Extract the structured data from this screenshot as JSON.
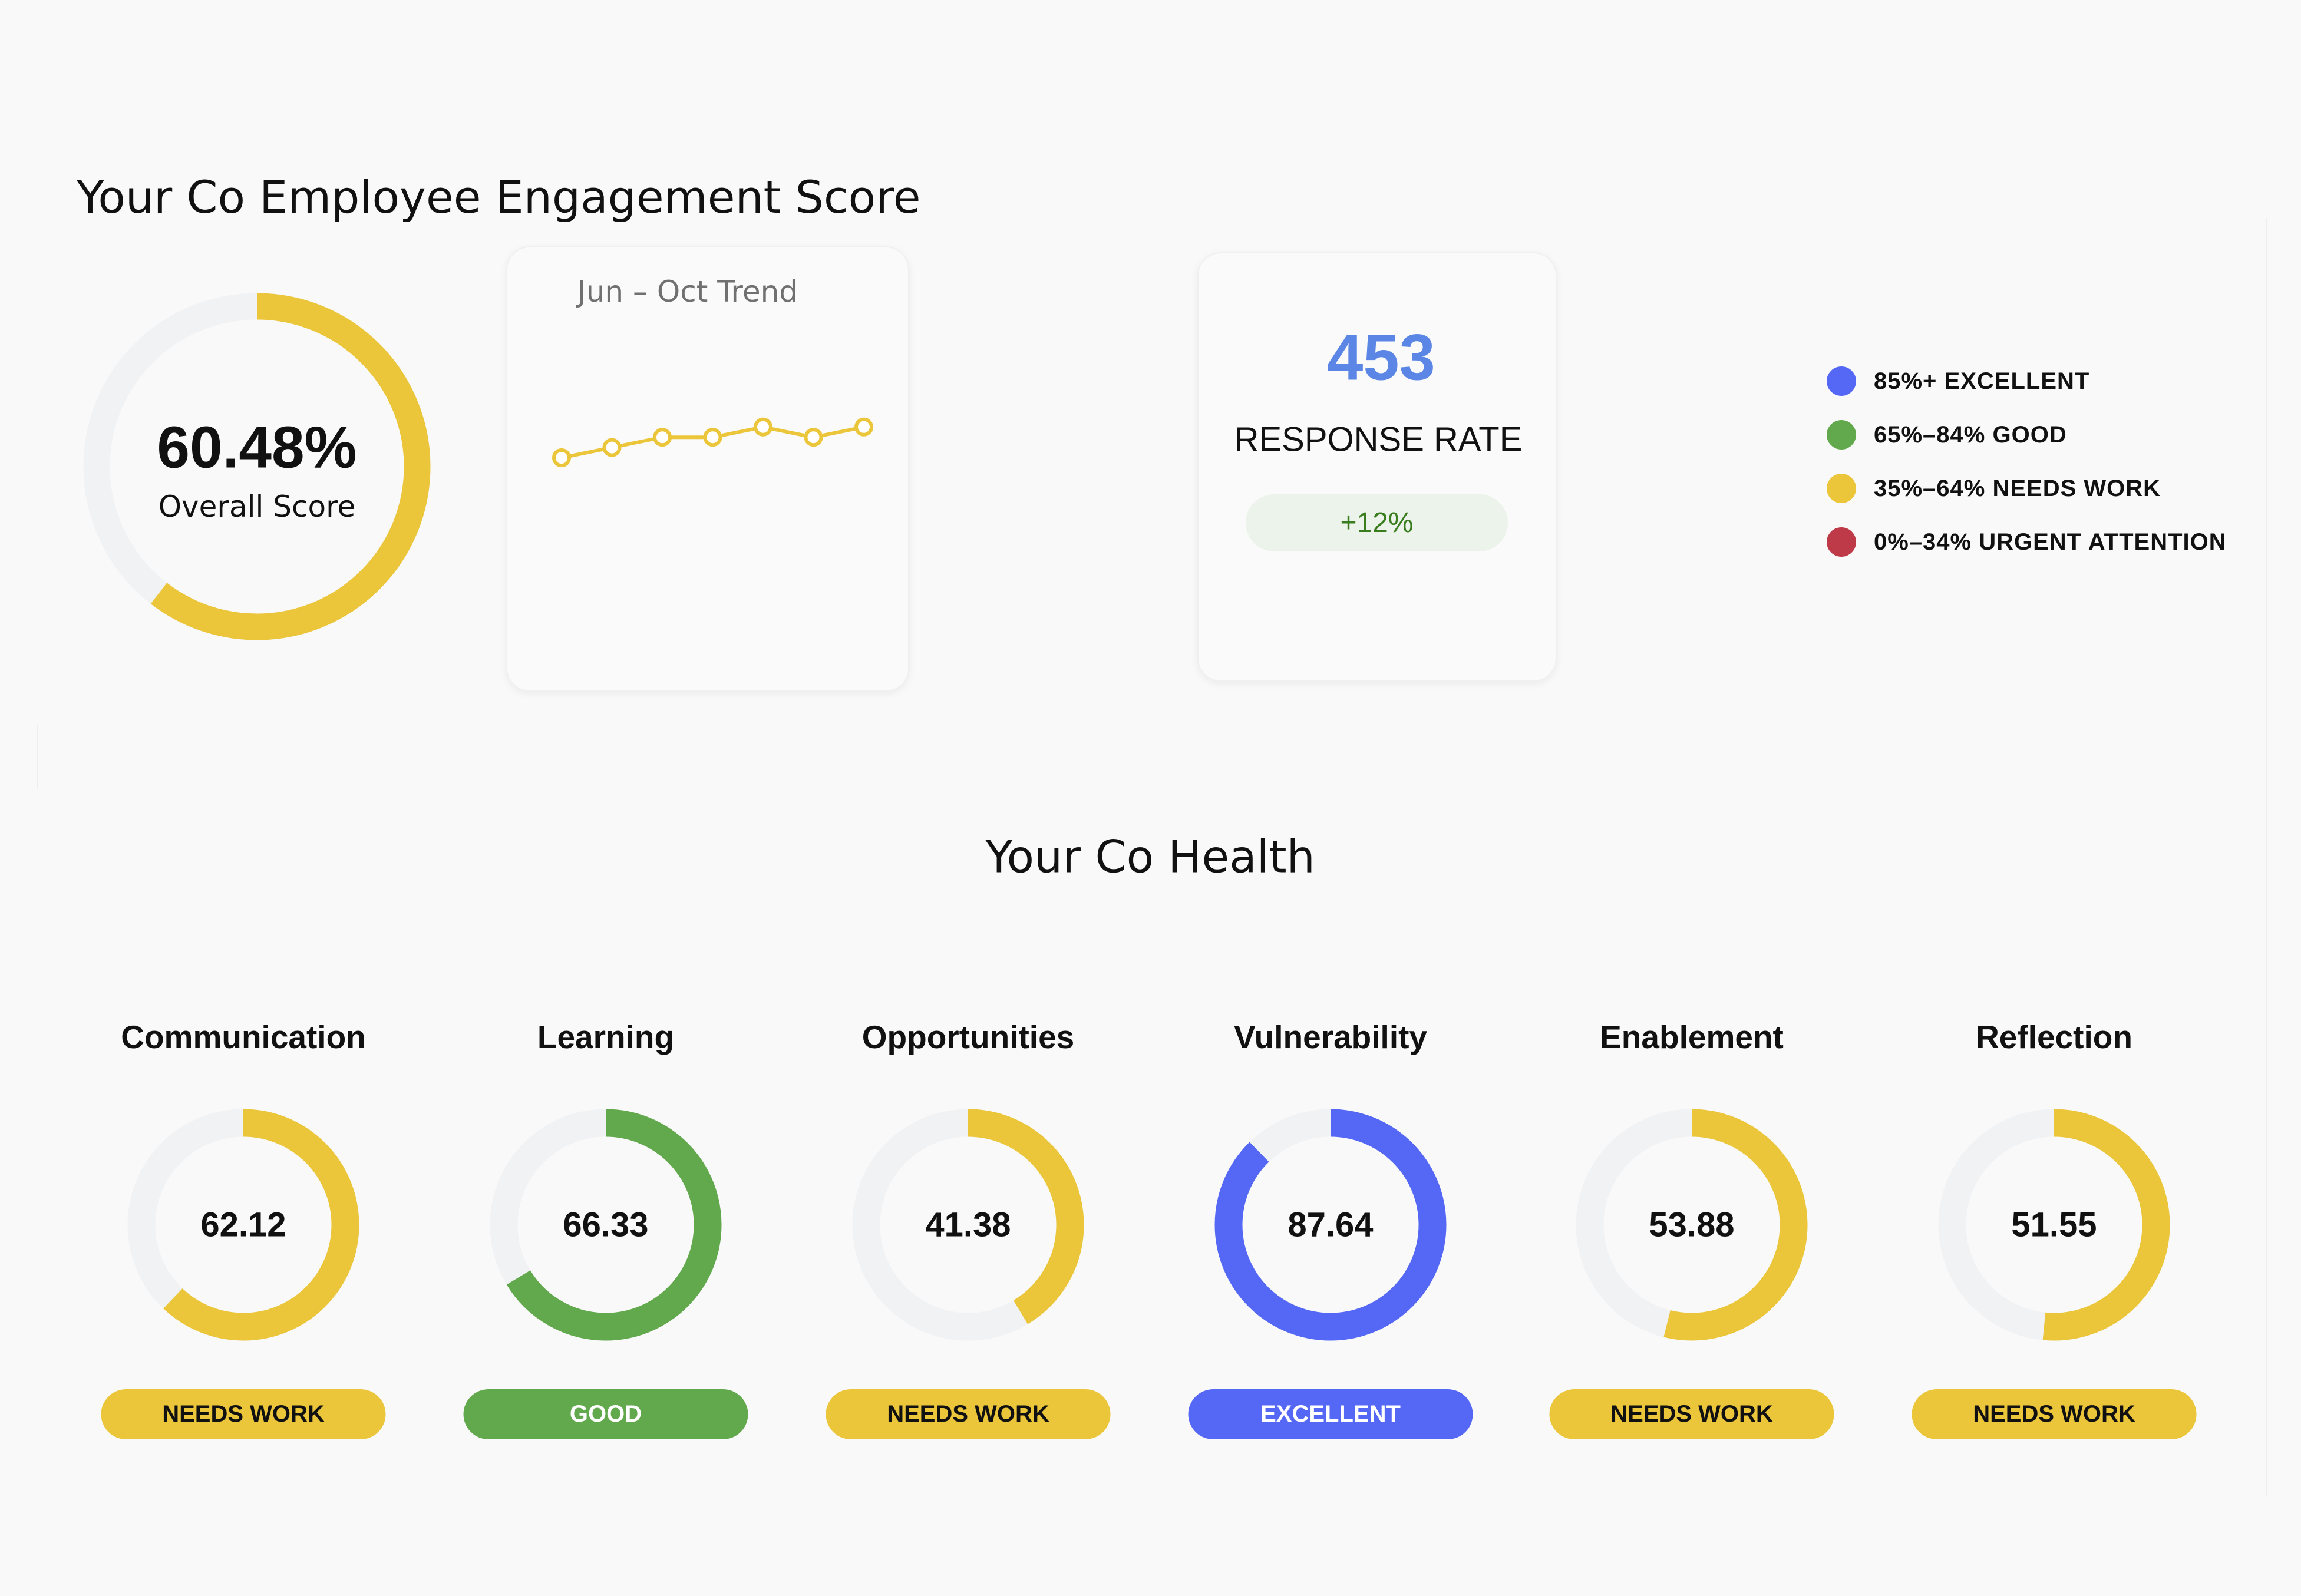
{
  "engagement": {
    "title": "Your Co Employee Engagement Score",
    "overall_score": 60.48,
    "overall_score_label": "60.48%",
    "overall_caption": "Overall Score",
    "overall_color": "#ebc63a"
  },
  "trend": {
    "title": "Jun – Oct Trend",
    "color": "#ebc63a"
  },
  "chart_data": {
    "type": "line",
    "title": "Jun – Oct Trend",
    "series": [
      {
        "values": [
          1,
          2,
          3,
          3,
          4,
          3,
          4
        ]
      }
    ],
    "grid": false,
    "note_axes": "no axes or tick labels shown; values are relative levels"
  },
  "response": {
    "count": "453",
    "label": "RESPONSE RATE",
    "change": "+12%"
  },
  "legend": [
    {
      "label": "85%+ EXCELLENT",
      "color": "#5468f5"
    },
    {
      "label": "65%–84% GOOD",
      "color": "#62a84c"
    },
    {
      "label": "35%–64% NEEDS WORK",
      "color": "#ebc63a"
    },
    {
      "label": "0%–34% URGENT ATTENTION",
      "color": "#bf3a48"
    }
  ],
  "health": {
    "title": "Your Co Health",
    "categories": [
      {
        "name": "Communication",
        "value": 62.12,
        "value_label": "62.12",
        "status": "NEEDS WORK",
        "color": "#ebc63a",
        "text_color": "#111111"
      },
      {
        "name": "Learning",
        "value": 66.33,
        "value_label": "66.33",
        "status": "GOOD",
        "color": "#62a84c",
        "text_color": "#ffffff"
      },
      {
        "name": "Opportunities",
        "value": 41.38,
        "value_label": "41.38",
        "status": "NEEDS WORK",
        "color": "#ebc63a",
        "text_color": "#111111"
      },
      {
        "name": "Vulnerability",
        "value": 87.64,
        "value_label": "87.64",
        "status": "EXCELLENT",
        "color": "#5468f5",
        "text_color": "#ffffff"
      },
      {
        "name": "Enablement",
        "value": 53.88,
        "value_label": "53.88",
        "status": "NEEDS WORK",
        "color": "#ebc63a",
        "text_color": "#111111"
      },
      {
        "name": "Reflection",
        "value": 51.55,
        "value_label": "51.55",
        "status": "NEEDS WORK",
        "color": "#ebc63a",
        "text_color": "#111111"
      }
    ]
  }
}
